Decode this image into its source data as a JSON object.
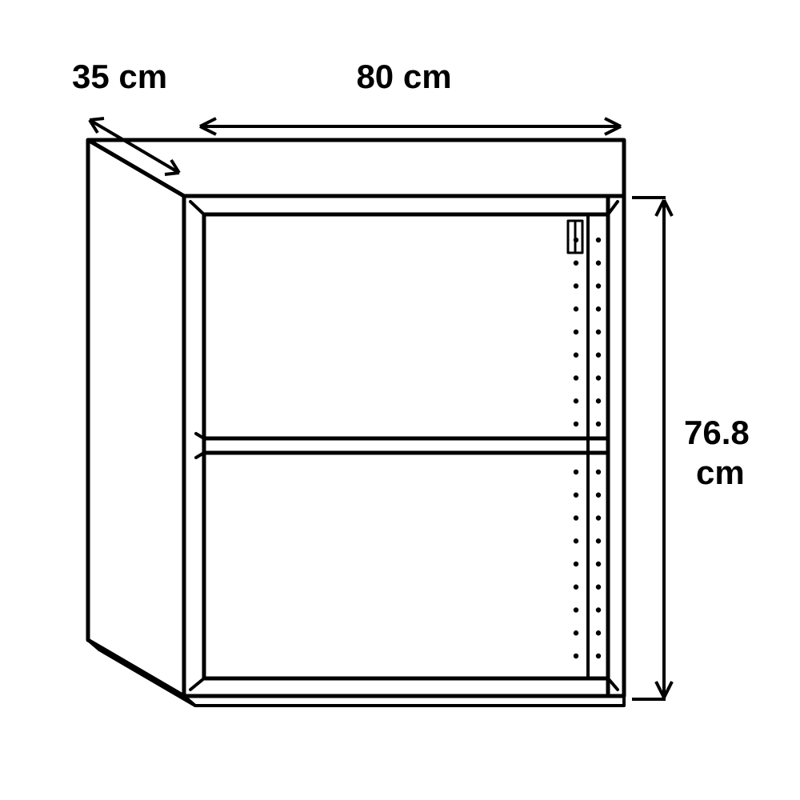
{
  "diagram": {
    "type": "technical-line-drawing",
    "subject": "open-front wall cabinet with one shelf",
    "background_color": "#ffffff",
    "stroke_color": "#000000",
    "stroke_width_main": 5,
    "stroke_width_thin": 4,
    "dimensions": {
      "depth": {
        "label": "35 cm",
        "value": 35,
        "unit": "cm"
      },
      "width": {
        "label": "80 cm",
        "value": 80,
        "unit": "cm"
      },
      "height": {
        "label_line1": "76.8",
        "label_line2": "cm",
        "value": 76.8,
        "unit": "cm"
      }
    },
    "label_font_size": 42,
    "label_font_weight": 700,
    "arrow_head_size": 16,
    "peg_hole_columns": 2,
    "peg_hole_rows_per_section": 9,
    "peg_hole_radius": 3.2
  }
}
